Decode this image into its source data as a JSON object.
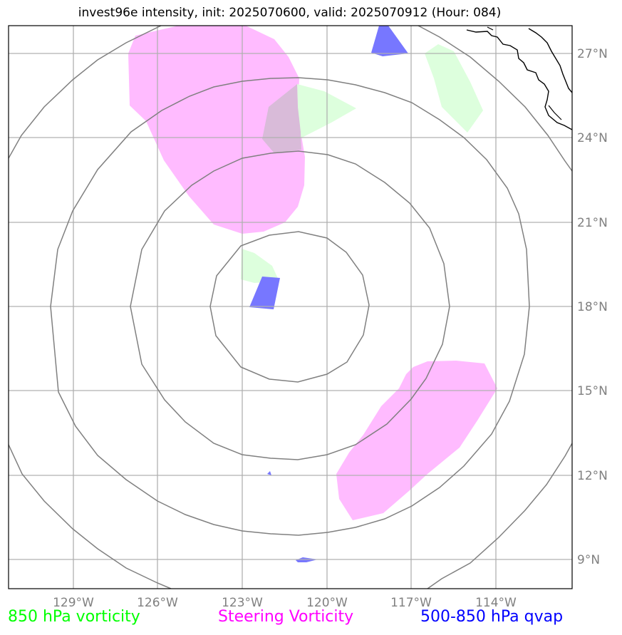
{
  "title": "invest96e intensity, init: 2025070600, valid: 2025070912 (Hour: 084)",
  "longitude_labels": [
    "129°W",
    "126°W",
    "123°W",
    "120°W",
    "117°W",
    "114°W"
  ],
  "latitude_labels": [
    "27°N",
    "24°N",
    "21°N",
    "18°N",
    "15°N",
    "12°N",
    "9°N"
  ],
  "legend": [
    {
      "label": "850 hPa vorticity",
      "color": "#00ff00"
    },
    {
      "label": "Steering Vorticity",
      "color": "#ff00ff"
    },
    {
      "label": "500-850 hPa qvap",
      "color": "#0000ff"
    }
  ],
  "colors": {
    "vorticity_fill": "#ddffdd",
    "steering_fill": "#ffbbff",
    "qvap_fill": "#7777ff",
    "range_rings": "#808080",
    "gridlines": "#b0b0b0",
    "coastline": "#000000"
  }
}
